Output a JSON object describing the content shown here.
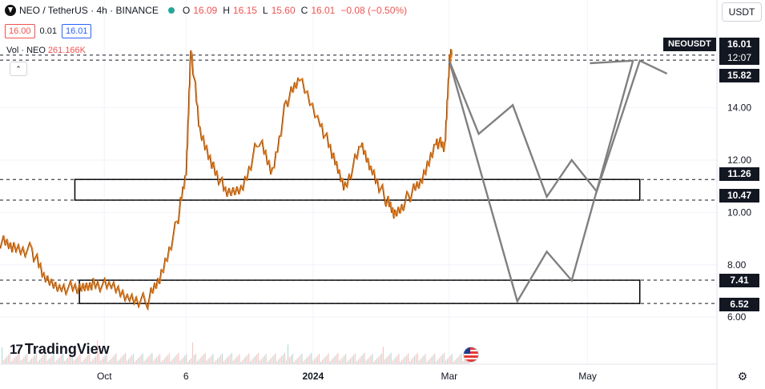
{
  "header": {
    "symbol": "NEO / TetherUS · 4h · BINANCE",
    "o_label": "O",
    "o_value": "16.09",
    "h_label": "H",
    "h_value": "16.15",
    "l_label": "L",
    "l_value": "15.60",
    "c_label": "C",
    "c_value": "16.01",
    "change": "−0.08 (−0.50%)"
  },
  "bidask": {
    "sell": "16.00",
    "spread": "0.01",
    "buy": "16.01"
  },
  "volume": {
    "label": "Vol · NEO",
    "value": "261.166K"
  },
  "currency": "USDT",
  "countdown": "12:07",
  "symbol_tag": "NEOUSDT",
  "colors": {
    "up": "#26a69a",
    "down": "#ef5350",
    "candle_body": "#ff7a00",
    "candle_wick": "#131722",
    "path": "#808080"
  },
  "icons": [
    "neo-logo-icon",
    "status-dot-icon",
    "collapse-chevron-icon",
    "tradingview-logo-icon",
    "us-flag-icon",
    "settings-gear-icon"
  ],
  "chart_data": {
    "type": "line",
    "y_axis": {
      "ticks": [
        "6.00",
        "8.00",
        "10.00",
        "12.00",
        "14.00"
      ],
      "tick_values": [
        6,
        8,
        10,
        12,
        14
      ],
      "range": [
        4.2,
        17.2
      ],
      "side": "right"
    },
    "x_axis": {
      "ticks": [
        {
          "label": "Oct",
          "date": "2023-10-01"
        },
        {
          "label": "6",
          "date": "2023-11-06"
        },
        {
          "label": "2024",
          "date": "2024-01-01"
        },
        {
          "label": "Mar",
          "date": "2024-03-01"
        },
        {
          "label": "May",
          "date": "2024-05-01"
        }
      ],
      "range": [
        "2023-08-16",
        "2024-06-27"
      ]
    },
    "price_labels": [
      {
        "value": 16.01,
        "label": "16.01"
      },
      {
        "value": 15.82,
        "label": "15.82"
      },
      {
        "value": 11.26,
        "label": "11.26"
      },
      {
        "value": 10.47,
        "label": "10.47"
      },
      {
        "value": 7.41,
        "label": "7.41"
      },
      {
        "value": 6.52,
        "label": "6.52"
      }
    ],
    "price_series": {
      "name": "NEO/USDT 4h close (approx.)",
      "points": [
        [
          "2023-08-16",
          8.9
        ],
        [
          "2023-08-22",
          8.65
        ],
        [
          "2023-08-30",
          8.55
        ],
        [
          "2023-09-05",
          7.4
        ],
        [
          "2023-09-12",
          7.2
        ],
        [
          "2023-09-20",
          7.0
        ],
        [
          "2023-09-26",
          7.35
        ],
        [
          "2023-10-04",
          7.1
        ],
        [
          "2023-10-12",
          6.75
        ],
        [
          "2023-10-20",
          6.6
        ],
        [
          "2023-10-26",
          7.6
        ],
        [
          "2023-11-02",
          9.6
        ],
        [
          "2023-11-06",
          11.5
        ],
        [
          "2023-11-08",
          16.4
        ],
        [
          "2023-11-12",
          13.0
        ],
        [
          "2023-11-18",
          11.8
        ],
        [
          "2023-11-24",
          10.6
        ],
        [
          "2023-12-01",
          11.0
        ],
        [
          "2023-12-08",
          12.8
        ],
        [
          "2023-12-14",
          11.5
        ],
        [
          "2023-12-20",
          14.2
        ],
        [
          "2023-12-26",
          15.1
        ],
        [
          "2024-01-04",
          13.5
        ],
        [
          "2024-01-10",
          12.0
        ],
        [
          "2024-01-15",
          11.0
        ],
        [
          "2024-01-22",
          12.5
        ],
        [
          "2024-01-27",
          11.6
        ],
        [
          "2024-02-02",
          10.5
        ],
        [
          "2024-02-06",
          9.9
        ],
        [
          "2024-02-12",
          10.6
        ],
        [
          "2024-02-18",
          11.2
        ],
        [
          "2024-02-24",
          12.8
        ],
        [
          "2024-02-28",
          12.4
        ],
        [
          "2024-03-01",
          15.9
        ],
        [
          "2024-03-02",
          16.01
        ]
      ]
    },
    "projection_paths": [
      {
        "points": [
          [
            "2024-03-01",
            15.8
          ],
          [
            "2024-03-14",
            13.0
          ],
          [
            "2024-03-29",
            14.1
          ],
          [
            "2024-04-13",
            10.6
          ],
          [
            "2024-04-24",
            12.0
          ],
          [
            "2024-05-05",
            10.8
          ],
          [
            "2024-05-24",
            15.8
          ],
          [
            "2024-06-05",
            15.3
          ]
        ]
      },
      {
        "points": [
          [
            "2024-03-01",
            15.8
          ],
          [
            "2024-03-31",
            6.6
          ],
          [
            "2024-04-13",
            8.5
          ],
          [
            "2024-04-24",
            7.4
          ],
          [
            "2024-05-21",
            15.8
          ],
          [
            "2024-05-02",
            15.7
          ]
        ]
      }
    ],
    "zones": [
      {
        "from_date": "2023-09-18",
        "to_date": "2024-05-24",
        "low": 10.47,
        "high": 11.26
      },
      {
        "from_date": "2023-09-20",
        "to_date": "2024-05-24",
        "low": 6.52,
        "high": 7.41
      }
    ],
    "level_lines": [
      16.01,
      15.82,
      11.26,
      10.47,
      7.41,
      6.52
    ],
    "volume_series_note": "",
    "grid": true,
    "legend": "top-left"
  }
}
